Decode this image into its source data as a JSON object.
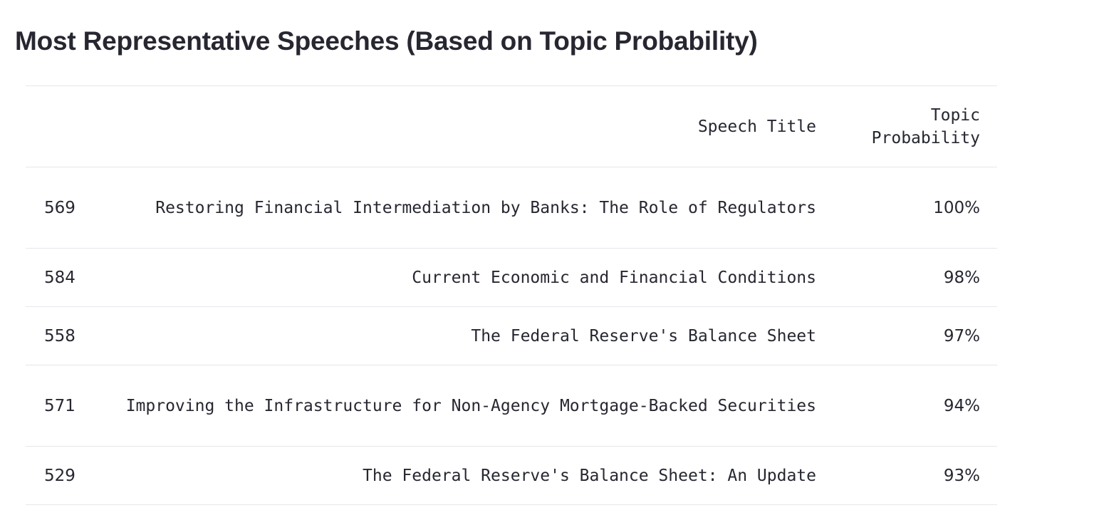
{
  "page": {
    "title": "Most Representative Speeches (Based on Topic Probability)"
  },
  "table": {
    "columns": {
      "index": "",
      "title": "Speech Title",
      "probability": "Topic Probability"
    },
    "rows": [
      {
        "index": "569",
        "title": "Restoring Financial Intermediation by Banks: The Role of Regulators",
        "probability": "100%"
      },
      {
        "index": "584",
        "title": "Current Economic and Financial Conditions",
        "probability": "98%"
      },
      {
        "index": "558",
        "title": "The Federal Reserve's Balance Sheet",
        "probability": "97%"
      },
      {
        "index": "571",
        "title": "Improving the Infrastructure for Non-Agency Mortgage-Backed Securities",
        "probability": "94%"
      },
      {
        "index": "529",
        "title": "The Federal Reserve's Balance Sheet: An Update",
        "probability": "93%"
      }
    ]
  }
}
